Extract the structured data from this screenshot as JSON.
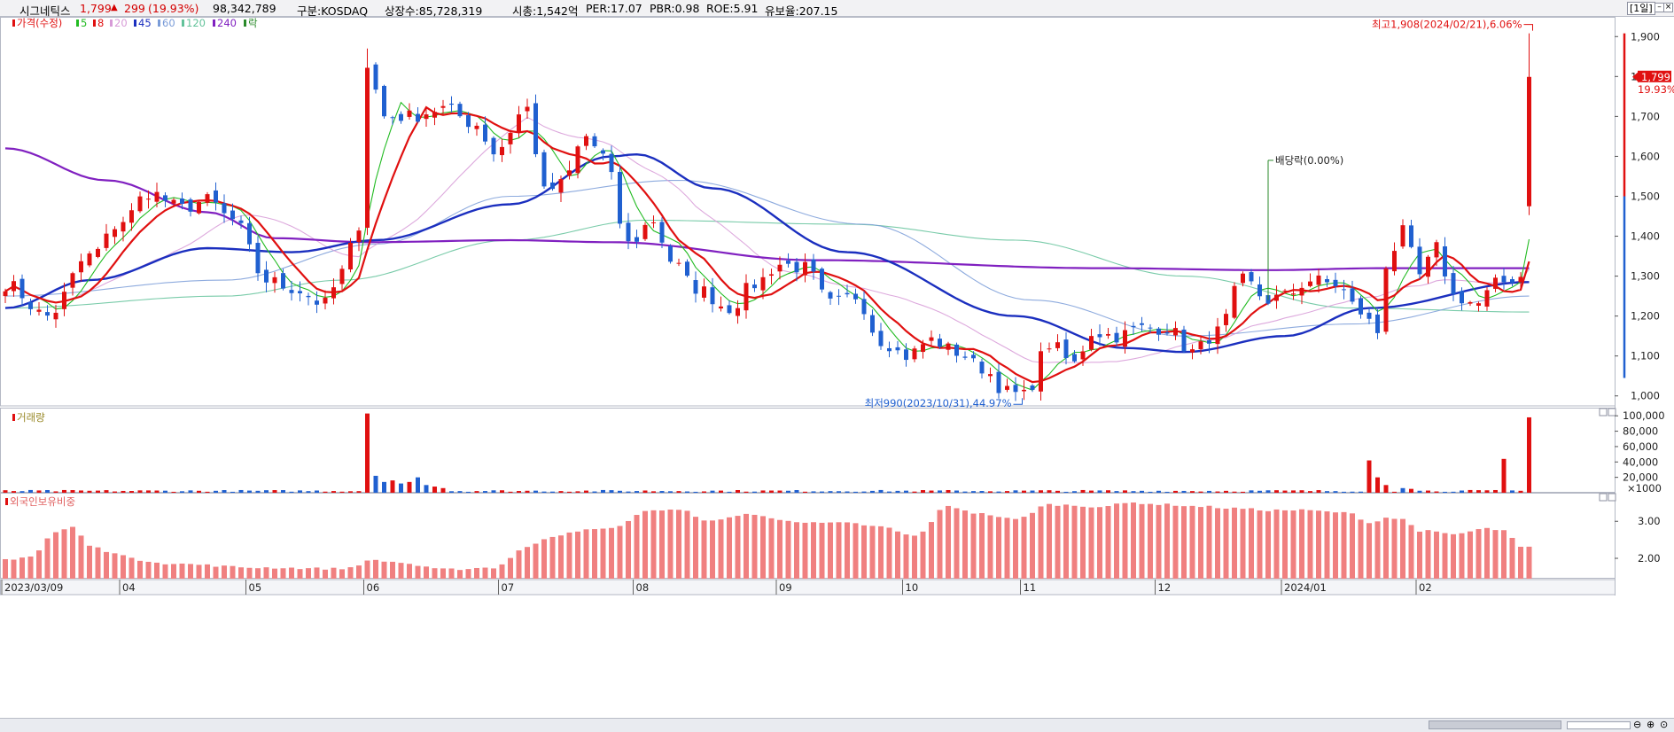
{
  "header": {
    "stock_name": "시그네틱스",
    "price": "1,799",
    "change_arrow": "▲",
    "change": "299",
    "change_pct": "(19.93%)",
    "volume": "98,342,789",
    "market": "구분:KOSDAQ",
    "shares": "상장수:85,728,319",
    "market_cap": "시총:1,542억",
    "per": "PER:17.07",
    "pbr": "PBR:0.98",
    "roe": "ROE:5.91",
    "reserve": "유보율:207.15",
    "period": "[1일]"
  },
  "legend": {
    "price_label": "가격(수정)",
    "ma": [
      {
        "label": "5",
        "color": "#22bb22"
      },
      {
        "label": "8",
        "color": "#e01010"
      },
      {
        "label": "20",
        "color": "#d79ad7"
      },
      {
        "label": "45",
        "color": "#1b2fbf"
      },
      {
        "label": "60",
        "color": "#7a9cd8"
      },
      {
        "label": "120",
        "color": "#62c29a"
      },
      {
        "label": "240",
        "color": "#8020c0"
      }
    ],
    "ex_label": "락"
  },
  "colors": {
    "up": "#e01010",
    "down": "#2060d0",
    "foreign_bar": "#f08080"
  },
  "chart_data": [
    {
      "type": "candlestick",
      "title": "가격(수정)",
      "yticks": [
        "1,900",
        "1,800",
        "1,700",
        "1,600",
        "1,500",
        "1,400",
        "1,300",
        "1,200",
        "1,100",
        "1,000"
      ],
      "ytick_values": [
        1900,
        1800,
        1700,
        1600,
        1500,
        1400,
        1300,
        1200,
        1100,
        1000
      ],
      "ylim": [
        975,
        1945
      ],
      "x_labels": [
        "2023/03/09",
        "04",
        "05",
        "06",
        "07",
        "08",
        "09",
        "10",
        "11",
        "12",
        "2024/01",
        "02"
      ],
      "last_price_label": "1,799",
      "last_change_label": "19.93%",
      "annotations": {
        "high": "최고1,908(2024/02/21),6.06%",
        "low": "최저990(2023/10/31),44.97%",
        "dividend": "배당락(0.00%)"
      },
      "anchors": [
        [
          0,
          1280
        ],
        [
          5,
          1200
        ],
        [
          10,
          1350
        ],
        [
          14,
          1440
        ],
        [
          17,
          1510
        ],
        [
          21,
          1470
        ],
        [
          24,
          1490
        ],
        [
          27,
          1440
        ],
        [
          31,
          1290
        ],
        [
          34,
          1270
        ],
        [
          38,
          1230
        ],
        [
          40,
          1310
        ],
        [
          42,
          1430
        ],
        [
          43,
          1830
        ],
        [
          45,
          1700
        ],
        [
          48,
          1700
        ],
        [
          52,
          1720
        ],
        [
          56,
          1680
        ],
        [
          58,
          1610
        ],
        [
          62,
          1720
        ],
        [
          64,
          1510
        ],
        [
          66,
          1530
        ],
        [
          69,
          1650
        ],
        [
          71,
          1600
        ],
        [
          74,
          1380
        ],
        [
          77,
          1440
        ],
        [
          79,
          1340
        ],
        [
          82,
          1270
        ],
        [
          86,
          1220
        ],
        [
          89,
          1280
        ],
        [
          92,
          1330
        ],
        [
          95,
          1320
        ],
        [
          98,
          1230
        ],
        [
          101,
          1250
        ],
        [
          104,
          1140
        ],
        [
          107,
          1100
        ],
        [
          110,
          1140
        ],
        [
          113,
          1110
        ],
        [
          116,
          1070
        ],
        [
          119,
          1010
        ],
        [
          121,
          1000
        ],
        [
          124,
          1130
        ],
        [
          127,
          1080
        ],
        [
          129,
          1160
        ],
        [
          132,
          1150
        ],
        [
          135,
          1170
        ],
        [
          138,
          1170
        ],
        [
          141,
          1110
        ],
        [
          144,
          1160
        ],
        [
          147,
          1290
        ],
        [
          150,
          1240
        ],
        [
          152,
          1250
        ],
        [
          155,
          1290
        ],
        [
          158,
          1280
        ],
        [
          161,
          1210
        ],
        [
          163,
          1160
        ],
        [
          164,
          1330
        ],
        [
          166,
          1410
        ],
        [
          168,
          1300
        ],
        [
          170,
          1370
        ],
        [
          172,
          1250
        ],
        [
          175,
          1230
        ],
        [
          177,
          1280
        ],
        [
          180,
          1300
        ],
        [
          181,
          1790
        ]
      ],
      "ma_anchors": {
        "240": [
          [
            0,
            1620
          ],
          [
            12,
            1540
          ],
          [
            24,
            1460
          ],
          [
            32,
            1395
          ],
          [
            43,
            1385
          ],
          [
            60,
            1390
          ],
          [
            72,
            1385
          ],
          [
            96,
            1340
          ],
          [
            130,
            1320
          ],
          [
            150,
            1315
          ],
          [
            164,
            1320
          ],
          [
            181,
            1320
          ]
        ],
        "45": [
          [
            0,
            1220
          ],
          [
            10,
            1290
          ],
          [
            24,
            1370
          ],
          [
            34,
            1360
          ],
          [
            44,
            1390
          ],
          [
            60,
            1480
          ],
          [
            72,
            1600
          ],
          [
            75,
            1605
          ],
          [
            84,
            1520
          ],
          [
            100,
            1360
          ],
          [
            120,
            1200
          ],
          [
            133,
            1120
          ],
          [
            140,
            1110
          ],
          [
            152,
            1150
          ],
          [
            162,
            1220
          ],
          [
            181,
            1285
          ]
        ],
        "120": [
          [
            0,
            1220
          ],
          [
            26,
            1250
          ],
          [
            40,
            1290
          ],
          [
            60,
            1390
          ],
          [
            76,
            1440
          ],
          [
            100,
            1430
          ],
          [
            120,
            1390
          ],
          [
            140,
            1300
          ],
          [
            160,
            1220
          ],
          [
            181,
            1210
          ]
        ],
        "60": [
          [
            0,
            1250
          ],
          [
            26,
            1290
          ],
          [
            44,
            1380
          ],
          [
            60,
            1500
          ],
          [
            80,
            1540
          ],
          [
            102,
            1430
          ],
          [
            122,
            1240
          ],
          [
            140,
            1150
          ],
          [
            160,
            1180
          ],
          [
            181,
            1250
          ]
        ]
      }
    },
    {
      "type": "bar",
      "title": "거래량",
      "yticks": [
        "100,000",
        "80,000",
        "60,000",
        "40,000",
        "20,000",
        "×1000"
      ],
      "ytick_values": [
        100000,
        80000,
        60000,
        40000,
        20000
      ],
      "ylim": [
        0,
        106000
      ],
      "spikes": [
        [
          43,
          103000,
          "up"
        ],
        [
          44,
          22000,
          "down"
        ],
        [
          45,
          14000,
          "down"
        ],
        [
          46,
          16000,
          "up"
        ],
        [
          47,
          12000,
          "down"
        ],
        [
          48,
          14000,
          "up"
        ],
        [
          49,
          20000,
          "down"
        ],
        [
          50,
          10000,
          "down"
        ],
        [
          51,
          8000,
          "up"
        ],
        [
          52,
          6000,
          "up"
        ],
        [
          162,
          42000,
          "up"
        ],
        [
          163,
          20000,
          "up"
        ],
        [
          164,
          10000,
          "up"
        ],
        [
          166,
          6000,
          "down"
        ],
        [
          167,
          5000,
          "up"
        ],
        [
          178,
          44000,
          "up"
        ],
        [
          181,
          98000,
          "up"
        ]
      ]
    },
    {
      "type": "bar",
      "title": "외국인보유비중",
      "yticks": [
        "3.00",
        "2.00"
      ],
      "ytick_values": [
        3.0,
        2.0
      ],
      "ylim": [
        1.45,
        3.7
      ],
      "anchors": [
        [
          0,
          1.97
        ],
        [
          3,
          2.05
        ],
        [
          6,
          2.7
        ],
        [
          8,
          2.85
        ],
        [
          10,
          2.35
        ],
        [
          12,
          2.2
        ],
        [
          16,
          1.95
        ],
        [
          20,
          1.85
        ],
        [
          30,
          1.75
        ],
        [
          40,
          1.72
        ],
        [
          44,
          1.95
        ],
        [
          46,
          1.9
        ],
        [
          52,
          1.7
        ],
        [
          58,
          1.75
        ],
        [
          62,
          2.3
        ],
        [
          65,
          2.6
        ],
        [
          68,
          2.75
        ],
        [
          72,
          2.8
        ],
        [
          74,
          3.0
        ],
        [
          76,
          3.3
        ],
        [
          80,
          3.3
        ],
        [
          84,
          3.0
        ],
        [
          88,
          3.2
        ],
        [
          92,
          3.05
        ],
        [
          96,
          2.95
        ],
        [
          100,
          2.95
        ],
        [
          104,
          2.85
        ],
        [
          108,
          2.6
        ],
        [
          112,
          3.4
        ],
        [
          116,
          3.2
        ],
        [
          120,
          3.05
        ],
        [
          124,
          3.45
        ],
        [
          130,
          3.4
        ],
        [
          134,
          3.5
        ],
        [
          138,
          3.45
        ],
        [
          142,
          3.4
        ],
        [
          146,
          3.35
        ],
        [
          150,
          3.3
        ],
        [
          154,
          3.3
        ],
        [
          158,
          3.25
        ],
        [
          160,
          3.2
        ],
        [
          162,
          2.95
        ],
        [
          164,
          3.1
        ],
        [
          166,
          3.05
        ],
        [
          168,
          2.75
        ],
        [
          172,
          2.65
        ],
        [
          176,
          2.8
        ],
        [
          178,
          2.75
        ],
        [
          180,
          2.3
        ],
        [
          181,
          2.3
        ]
      ]
    }
  ]
}
